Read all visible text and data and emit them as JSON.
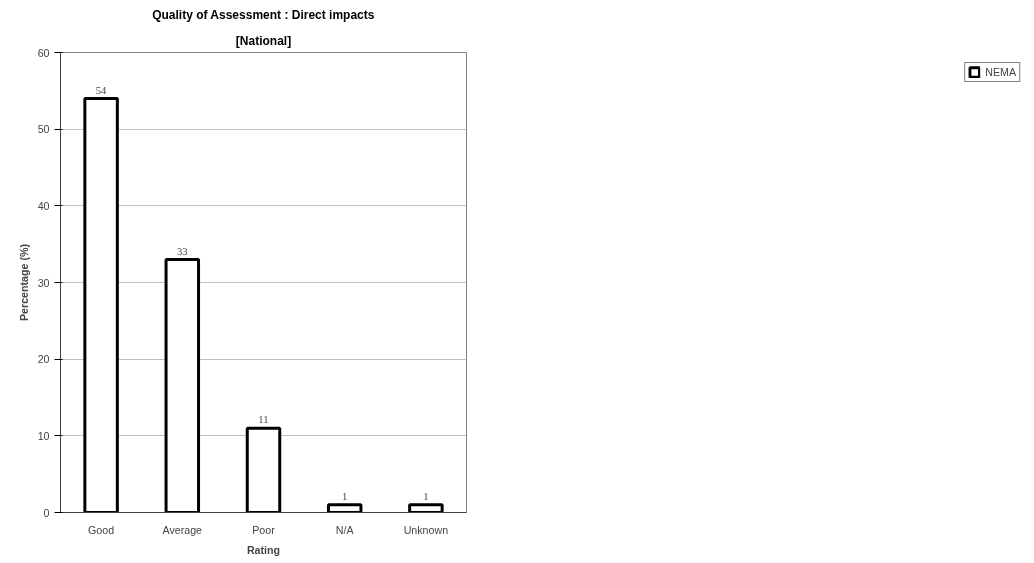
{
  "chart_data": {
    "type": "bar",
    "title": "Quality of Assessment : Direct impacts",
    "subtitle": "[National]",
    "xlabel": "Rating",
    "ylabel": "Percentage (%)",
    "categories": [
      "Good",
      "Average",
      "Poor",
      "N/A",
      "Unknown"
    ],
    "series": [
      {
        "name": "NEMA",
        "color": "#ffffff",
        "values": [
          54,
          33,
          11,
          1,
          1
        ]
      }
    ],
    "ylim": [
      0,
      60
    ],
    "yticks": [
      0,
      10,
      20,
      30,
      40,
      50,
      60
    ],
    "grid": "y",
    "legend": "right",
    "data_labels": true
  }
}
